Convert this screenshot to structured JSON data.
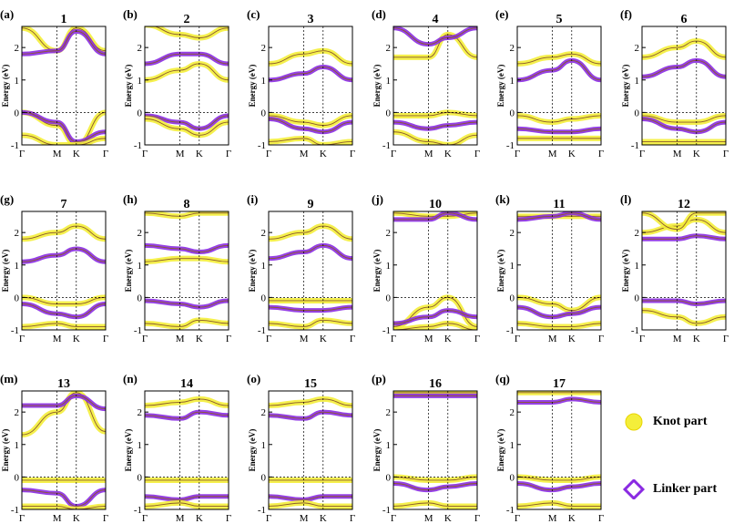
{
  "figure": {
    "y_axis_label": "Energy (eV)",
    "y_ticks": [
      "-1",
      "0",
      "1",
      "2"
    ],
    "k_labels": [
      "Γ",
      "M",
      "K",
      "Γ"
    ],
    "colors": {
      "knot": "#f4ee3a",
      "linker": "#8a2be2",
      "band": "#8b5a2b"
    }
  },
  "panels": [
    {
      "letter": "(a)",
      "title": "1"
    },
    {
      "letter": "(b)",
      "title": "2"
    },
    {
      "letter": "(c)",
      "title": "3"
    },
    {
      "letter": "(d)",
      "title": "4"
    },
    {
      "letter": "(e)",
      "title": "5"
    },
    {
      "letter": "(f)",
      "title": "6"
    },
    {
      "letter": "(g)",
      "title": "7"
    },
    {
      "letter": "(h)",
      "title": "8"
    },
    {
      "letter": "(i)",
      "title": "9"
    },
    {
      "letter": "(j)",
      "title": "10"
    },
    {
      "letter": "(k)",
      "title": "11"
    },
    {
      "letter": "(l)",
      "title": "12"
    },
    {
      "letter": "(m)",
      "title": "13"
    },
    {
      "letter": "(n)",
      "title": "14"
    },
    {
      "letter": "(o)",
      "title": "15"
    },
    {
      "letter": "(p)",
      "title": "16"
    },
    {
      "letter": "(q)",
      "title": "17"
    }
  ],
  "legend": {
    "knot_label": "Knot part",
    "linker_label": "Linker part"
  }
}
